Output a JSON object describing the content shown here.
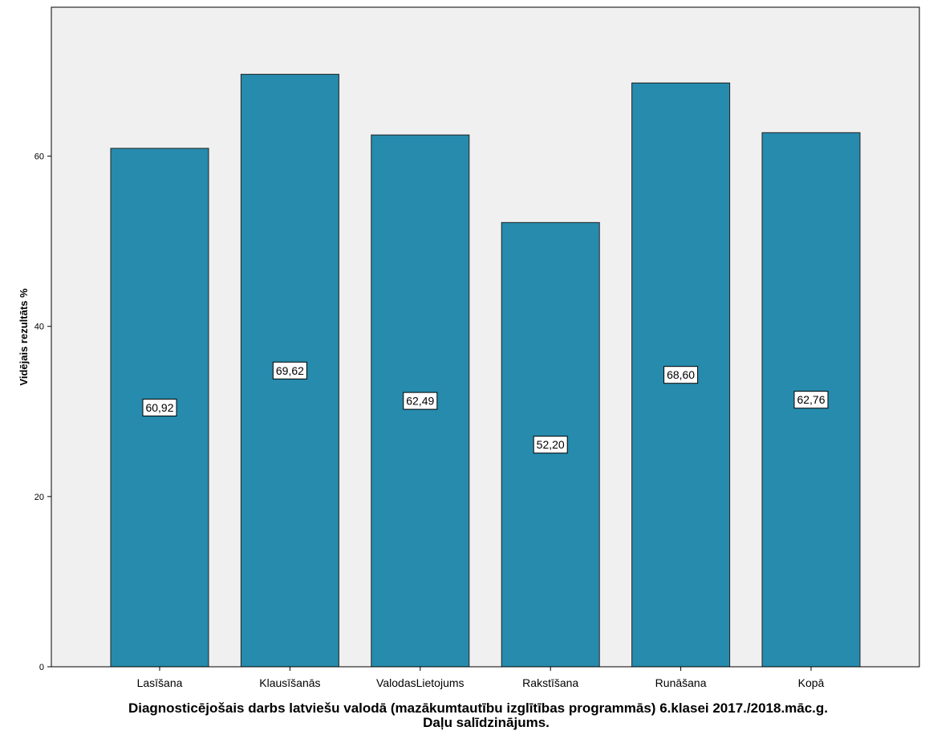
{
  "chart_data": {
    "type": "bar",
    "categories": [
      "Lasīšana",
      "Klausīšanās",
      "ValodasLietojums",
      "Rakstīšana",
      "Runāšana",
      "Kopā"
    ],
    "values": [
      60.92,
      69.62,
      62.49,
      52.2,
      68.6,
      62.76
    ],
    "data_labels": [
      "60,92",
      "69,62",
      "62,49",
      "52,20",
      "68,60",
      "62,76"
    ],
    "ylabel": "Vidējais rezultāts %",
    "xlabel_lines": [
      "Diagnosticējošais darbs latviešu valodā (mazākumtautību izglītības programmās) 6.klasei 2017./2018.māc.g.",
      "Daļu salīdzinājums."
    ],
    "ylim": [
      0,
      77.5
    ],
    "yticks": [
      0,
      20,
      40,
      60
    ],
    "grid": false,
    "colors": {
      "bar": "#268bad",
      "plot_background": "#f0f0f0",
      "bar_edge": "#222222"
    }
  }
}
